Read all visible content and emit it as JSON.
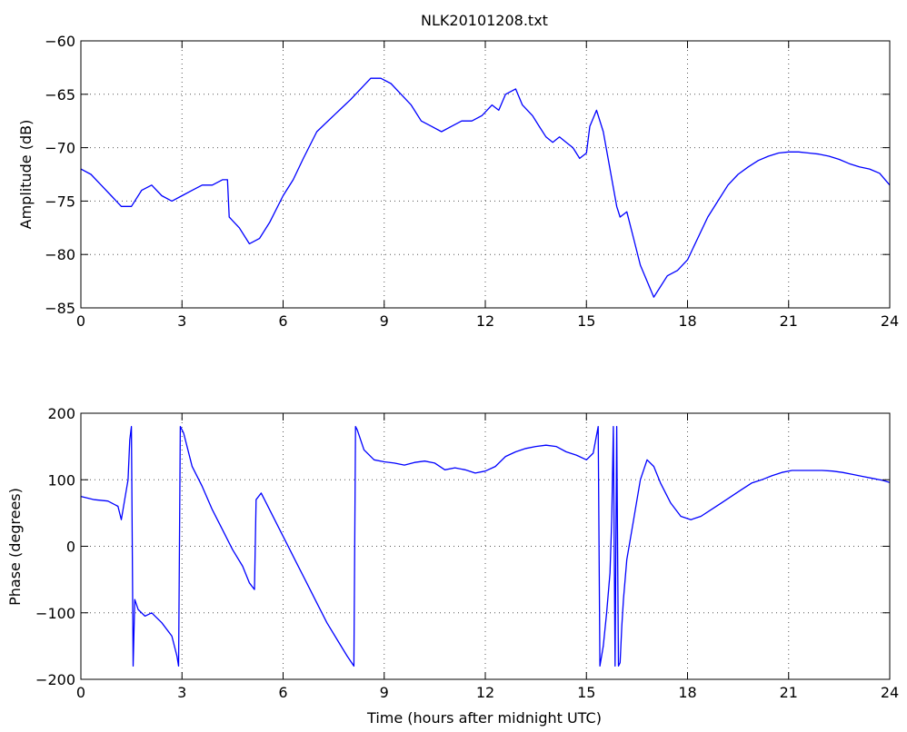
{
  "chart_data": [
    {
      "type": "line",
      "title": "NLK20101208.txt",
      "xlabel": "",
      "ylabel": "Amplitude (dB)",
      "xlim": [
        0,
        24
      ],
      "ylim": [
        -85,
        -60
      ],
      "xticks": [
        0,
        3,
        6,
        9,
        12,
        15,
        18,
        21,
        24
      ],
      "yticks": [
        -85,
        -80,
        -75,
        -70,
        -65,
        -60
      ],
      "grid": true,
      "line_color": "#0000ff",
      "series": [
        {
          "name": "",
          "x": [
            0,
            0.3,
            0.6,
            0.9,
            1.2,
            1.5,
            1.8,
            2.1,
            2.4,
            2.7,
            3.0,
            3.3,
            3.6,
            3.9,
            4.2,
            4.35,
            4.4,
            4.7,
            5.0,
            5.3,
            5.6,
            6.0,
            6.3,
            6.6,
            7.0,
            7.5,
            8.0,
            8.3,
            8.6,
            8.9,
            9.2,
            9.5,
            9.8,
            10.1,
            10.4,
            10.7,
            11.0,
            11.3,
            11.6,
            11.9,
            12.2,
            12.4,
            12.6,
            12.9,
            13.1,
            13.4,
            13.6,
            13.8,
            14.0,
            14.2,
            14.4,
            14.6,
            14.8,
            15.0,
            15.1,
            15.3,
            15.5,
            15.7,
            15.9,
            16.0,
            16.2,
            16.4,
            16.6,
            16.8,
            17.0,
            17.2,
            17.4,
            17.7,
            18.0,
            18.3,
            18.6,
            18.9,
            19.2,
            19.5,
            19.8,
            20.1,
            20.4,
            20.7,
            21.0,
            21.3,
            21.6,
            21.9,
            22.2,
            22.5,
            22.8,
            23.1,
            23.4,
            23.7,
            24.0
          ],
          "y": [
            -72,
            -72.5,
            -73.5,
            -74.5,
            -75.5,
            -75.5,
            -74,
            -73.5,
            -74.5,
            -75,
            -74.5,
            -74,
            -73.5,
            -73.5,
            -73,
            -73,
            -76.5,
            -77.5,
            -79,
            -78.5,
            -77,
            -74.5,
            -73,
            -71,
            -68.5,
            -67,
            -65.5,
            -64.5,
            -63.5,
            -63.5,
            -64,
            -65,
            -66,
            -67.5,
            -68,
            -68.5,
            -68,
            -67.5,
            -67.5,
            -67,
            -66,
            -66.5,
            -65,
            -64.5,
            -66,
            -67,
            -68,
            -69,
            -69.5,
            -69,
            -69.5,
            -70,
            -71,
            -70.5,
            -68,
            -66.5,
            -68.5,
            -72,
            -75.5,
            -76.5,
            -76,
            -78.5,
            -81,
            -82.5,
            -84,
            -83,
            -82,
            -81.5,
            -80.5,
            -78.5,
            -76.5,
            -75,
            -73.5,
            -72.5,
            -71.8,
            -71.2,
            -70.8,
            -70.5,
            -70.4,
            -70.4,
            -70.5,
            -70.6,
            -70.8,
            -71.1,
            -71.5,
            -71.8,
            -72,
            -72.4,
            -73.5
          ]
        }
      ]
    },
    {
      "type": "line",
      "title": "",
      "xlabel": "Time (hours after midnight UTC)",
      "ylabel": "Phase (degrees)",
      "xlim": [
        0,
        24
      ],
      "ylim": [
        -200,
        200
      ],
      "xticks": [
        0,
        3,
        6,
        9,
        12,
        15,
        18,
        21,
        24
      ],
      "yticks": [
        -200,
        -100,
        0,
        100,
        200
      ],
      "grid": true,
      "line_color": "#0000ff",
      "series": [
        {
          "name": "",
          "x": [
            0,
            0.4,
            0.8,
            1.1,
            1.2,
            1.3,
            1.4,
            1.45,
            1.5,
            1.55,
            1.6,
            1.7,
            1.9,
            2.1,
            2.4,
            2.7,
            2.85,
            2.9,
            2.95,
            3.0,
            3.05,
            3.3,
            3.6,
            3.9,
            4.2,
            4.5,
            4.8,
            5.0,
            5.15,
            5.2,
            5.35,
            5.5,
            5.8,
            6.1,
            6.4,
            6.7,
            7.0,
            7.3,
            7.6,
            7.9,
            8.1,
            8.15,
            8.2,
            8.4,
            8.7,
            9.0,
            9.3,
            9.6,
            9.9,
            10.2,
            10.5,
            10.8,
            11.1,
            11.4,
            11.7,
            12.0,
            12.3,
            12.6,
            12.9,
            13.2,
            13.5,
            13.8,
            14.1,
            14.4,
            14.7,
            15.0,
            15.2,
            15.35,
            15.4,
            15.5,
            15.6,
            15.7,
            15.75,
            15.8,
            15.85,
            15.9,
            15.95,
            16.0,
            16.05,
            16.1,
            16.2,
            16.4,
            16.6,
            16.8,
            17.0,
            17.2,
            17.5,
            17.8,
            18.1,
            18.4,
            18.7,
            19.0,
            19.3,
            19.6,
            19.9,
            20.2,
            20.5,
            20.8,
            21.1,
            21.4,
            21.7,
            22.0,
            22.3,
            22.6,
            22.9,
            23.2,
            23.5,
            23.8,
            24.0
          ],
          "y": [
            75,
            70,
            68,
            60,
            40,
            70,
            100,
            160,
            180,
            -180,
            -80,
            -95,
            -105,
            -100,
            -115,
            -135,
            -165,
            -180,
            180,
            175,
            170,
            120,
            90,
            55,
            25,
            -5,
            -30,
            -55,
            -65,
            70,
            80,
            65,
            35,
            5,
            -25,
            -55,
            -85,
            -115,
            -140,
            -165,
            -180,
            180,
            175,
            145,
            130,
            127,
            125,
            122,
            126,
            128,
            125,
            115,
            118,
            115,
            110,
            113,
            120,
            135,
            142,
            147,
            150,
            152,
            150,
            142,
            137,
            130,
            140,
            180,
            -180,
            -150,
            -100,
            -40,
            40,
            180,
            -180,
            180,
            -180,
            -175,
            -120,
            -80,
            -20,
            40,
            100,
            130,
            120,
            95,
            65,
            45,
            40,
            45,
            55,
            65,
            75,
            85,
            95,
            100,
            106,
            111,
            114,
            114,
            114,
            114,
            113,
            111,
            108,
            105,
            102,
            99,
            96
          ]
        }
      ]
    }
  ]
}
